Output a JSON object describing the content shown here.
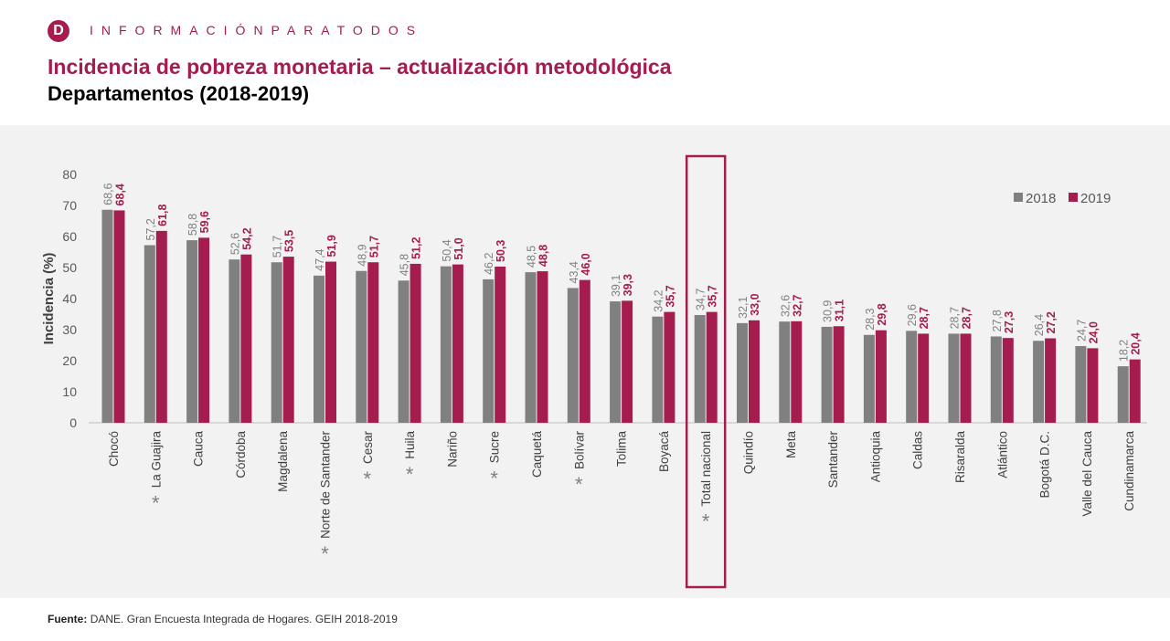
{
  "header": {
    "logo_letter": "D",
    "brand": "INFORMACIÓNPARATODOS",
    "title": "Incidencia de pobreza monetaria – actualización metodológica",
    "subtitle": "Departamentos (2018-2019)"
  },
  "footer": {
    "label": "Fuente:",
    "text": "DANE. Gran Encuesta Integrada de Hogares. GEIH 2018-2019"
  },
  "chart_data": {
    "type": "bar",
    "ylabel": "Incidencia (%)",
    "xlabel": "",
    "ylim": [
      0,
      80
    ],
    "yticks": [
      0,
      10,
      20,
      30,
      40,
      50,
      60,
      70,
      80
    ],
    "grid": false,
    "legend_placement": "top-right",
    "categories": [
      "Chocó",
      "La Guajira",
      "Cauca",
      "Córdoba",
      "Magdalena",
      "Norte de Santander",
      "Cesar",
      "Huila",
      "Nariño",
      "Sucre",
      "Caquetá",
      "Bolívar",
      "Tolima",
      "Boyacá",
      "Total nacional",
      "Quindío",
      "Meta",
      "Santander",
      "Antioquia",
      "Caldas",
      "Risaralda",
      "Atlántico",
      "Bogotá D.C.",
      "Valle del Cauca",
      "Cundinamarca"
    ],
    "asterisk_marker": "*",
    "asterisk_categories": [
      "La Guajira",
      "Norte de Santander",
      "Cesar",
      "Huila",
      "Sucre",
      "Bolívar",
      "Total nacional"
    ],
    "highlighted_category": "Total nacional",
    "series": [
      {
        "name": "2018",
        "color": "#808080",
        "values": [
          68.6,
          57.2,
          58.8,
          52.6,
          51.7,
          47.4,
          48.9,
          45.8,
          50.4,
          46.2,
          48.5,
          43.4,
          39.1,
          34.2,
          34.7,
          32.1,
          32.6,
          30.9,
          28.3,
          29.6,
          28.7,
          27.8,
          26.4,
          24.7,
          18.2
        ],
        "labels": [
          "68,6",
          "57,2",
          "58,8",
          "52,6",
          "51,7",
          "47,4",
          "48,9",
          "45,8",
          "50,4",
          "46,2",
          "48,5",
          "43,4",
          "39,1",
          "34,2",
          "34,7",
          "32,1",
          "32,6",
          "30,9",
          "28,3",
          "29,6",
          "28,7",
          "27,8",
          "26,4",
          "24,7",
          "18,2"
        ]
      },
      {
        "name": "2019",
        "color": "#a51c4e",
        "values": [
          68.4,
          61.8,
          59.6,
          54.2,
          53.5,
          51.9,
          51.7,
          51.2,
          51.0,
          50.3,
          48.8,
          46.0,
          39.3,
          35.7,
          35.7,
          33.0,
          32.7,
          31.1,
          29.8,
          28.7,
          28.7,
          27.3,
          27.2,
          24.0,
          20.4
        ],
        "labels": [
          "68,4",
          "61,8",
          "59,6",
          "54,2",
          "53,5",
          "51,9",
          "51,7",
          "51,2",
          "51,0",
          "50,3",
          "48,8",
          "46,0",
          "39,3",
          "35,7",
          "35,7",
          "33,0",
          "32,7",
          "31,1",
          "29,8",
          "28,7",
          "28,7",
          "27,3",
          "27,2",
          "24,0",
          "20,4"
        ]
      }
    ]
  }
}
